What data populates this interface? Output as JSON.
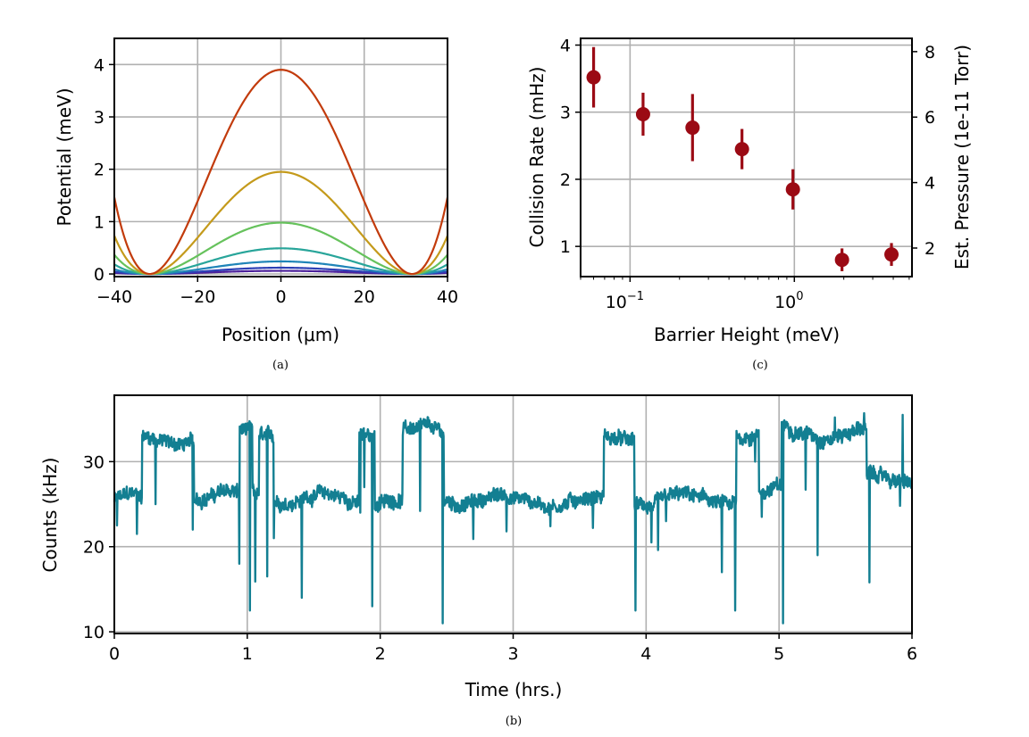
{
  "chart_data": [
    {
      "panel": "a",
      "caption": "(a)",
      "type": "line",
      "xlabel": "Position (μm)",
      "ylabel": "Potential (meV)",
      "xlim": [
        -40,
        40
      ],
      "ylim": [
        -0.05,
        4.5
      ],
      "xticks": [
        -40,
        -20,
        0,
        20,
        40
      ],
      "xtick_labels": [
        "−40",
        "−20",
        "0",
        "20",
        "40"
      ],
      "yticks": [
        0,
        1,
        2,
        3,
        4
      ],
      "ytick_labels": [
        "0",
        "1",
        "2",
        "3",
        "4"
      ],
      "grid": true,
      "curve_model": "double-well: V(x) = B * (1 - (x/w)^2)^2, w = 31.5 μm",
      "series": [
        {
          "barrier": 3.9,
          "color": "#c23b0c"
        },
        {
          "barrier": 1.95,
          "color": "#c49a1b"
        },
        {
          "barrier": 0.98,
          "color": "#66c25c"
        },
        {
          "barrier": 0.49,
          "color": "#28a59a"
        },
        {
          "barrier": 0.24,
          "color": "#1f84b8"
        },
        {
          "barrier": 0.12,
          "color": "#2d3fb5"
        },
        {
          "barrier": 0.06,
          "color": "#4a1f9a"
        }
      ]
    },
    {
      "panel": "c",
      "caption": "(c)",
      "type": "scatter",
      "xscale": "log",
      "xlabel": "Barrier Height (meV)",
      "ylabel": "Collision Rate (mHz)",
      "ylabel_right": "Est. Pressure (1e-11 Torr)",
      "xlim": [
        0.05,
        5.2
      ],
      "ylim": [
        0.55,
        4.1
      ],
      "xticks": [
        0.1,
        1
      ],
      "xtick_labels": [
        "10",
        "10"
      ],
      "xtick_exponents": [
        "−1",
        "0"
      ],
      "yticks": [
        1,
        2,
        3,
        4
      ],
      "ytick_labels": [
        "1",
        "2",
        "3",
        "4"
      ],
      "yticks_right": [
        2,
        4,
        6,
        8
      ],
      "ytick_labels_right": [
        "2",
        "4",
        "6",
        "8"
      ],
      "right_axis_scale": 2.05,
      "grid": true,
      "color": "#9b0a14",
      "points": [
        {
          "x": 0.06,
          "y": 3.52,
          "err": 0.45
        },
        {
          "x": 0.12,
          "y": 2.97,
          "err": 0.32
        },
        {
          "x": 0.24,
          "y": 2.77,
          "err": 0.5
        },
        {
          "x": 0.48,
          "y": 2.45,
          "err": 0.3
        },
        {
          "x": 0.98,
          "y": 1.85,
          "err": 0.3
        },
        {
          "x": 1.95,
          "y": 0.8,
          "err": 0.17
        },
        {
          "x": 3.9,
          "y": 0.88,
          "err": 0.17
        }
      ]
    },
    {
      "panel": "b",
      "caption": "(b)",
      "type": "line",
      "xlabel": "Time (hrs.)",
      "ylabel": "Counts (kHz)",
      "xlim": [
        0,
        6
      ],
      "ylim": [
        9.8,
        37.8
      ],
      "xticks": [
        0,
        1,
        2,
        3,
        4,
        5,
        6
      ],
      "xtick_labels": [
        "0",
        "1",
        "2",
        "3",
        "4",
        "5",
        "6"
      ],
      "yticks": [
        10,
        20,
        30
      ],
      "ytick_labels": [
        "10",
        "20",
        "30"
      ],
      "grid": true,
      "color": "#137f92",
      "segments": [
        [
          0.0,
          0.21,
          25.5
        ],
        [
          0.21,
          0.6,
          32.6
        ],
        [
          0.6,
          0.94,
          25.9
        ],
        [
          0.94,
          1.04,
          33.3
        ],
        [
          1.04,
          1.09,
          26.0
        ],
        [
          1.09,
          1.2,
          33.0
        ],
        [
          1.2,
          1.84,
          25.7
        ],
        [
          1.84,
          1.96,
          33.5
        ],
        [
          1.96,
          2.17,
          25.4
        ],
        [
          2.17,
          2.48,
          33.4
        ],
        [
          2.48,
          3.68,
          25.5
        ],
        [
          3.68,
          3.91,
          32.6
        ],
        [
          3.91,
          4.68,
          25.2
        ],
        [
          4.68,
          4.85,
          33.2
        ],
        [
          4.85,
          5.02,
          26.4
        ],
        [
          5.02,
          5.66,
          33.6
        ],
        [
          5.66,
          6.0,
          27.8
        ]
      ],
      "dips": [
        [
          0.02,
          22.5
        ],
        [
          0.17,
          21.5
        ],
        [
          0.31,
          25.0
        ],
        [
          0.59,
          22.0
        ],
        [
          0.94,
          18.0
        ],
        [
          1.02,
          12.5
        ],
        [
          1.06,
          15.9
        ],
        [
          1.15,
          16.5
        ],
        [
          1.2,
          21.0
        ],
        [
          1.27,
          24.5
        ],
        [
          1.41,
          14.0
        ],
        [
          1.85,
          24.0
        ],
        [
          1.88,
          27.0
        ],
        [
          1.94,
          13.0
        ],
        [
          2.3,
          24.2
        ],
        [
          2.47,
          11.0
        ],
        [
          2.7,
          20.9
        ],
        [
          2.95,
          21.8
        ],
        [
          3.28,
          22.4
        ],
        [
          3.6,
          22.2
        ],
        [
          3.92,
          12.5
        ],
        [
          4.04,
          20.5
        ],
        [
          4.09,
          19.6
        ],
        [
          4.15,
          23.0
        ],
        [
          4.57,
          17.0
        ],
        [
          4.67,
          12.5
        ],
        [
          4.82,
          30.0
        ],
        [
          4.87,
          23.5
        ],
        [
          5.03,
          11.0
        ],
        [
          5.2,
          26.7
        ],
        [
          5.29,
          19.0
        ],
        [
          5.68,
          15.8
        ],
        [
          5.91,
          24.8
        ]
      ],
      "spikes": [
        [
          5.93,
          35.5
        ],
        [
          5.64,
          35.7
        ],
        [
          5.42,
          35.2
        ]
      ]
    }
  ]
}
